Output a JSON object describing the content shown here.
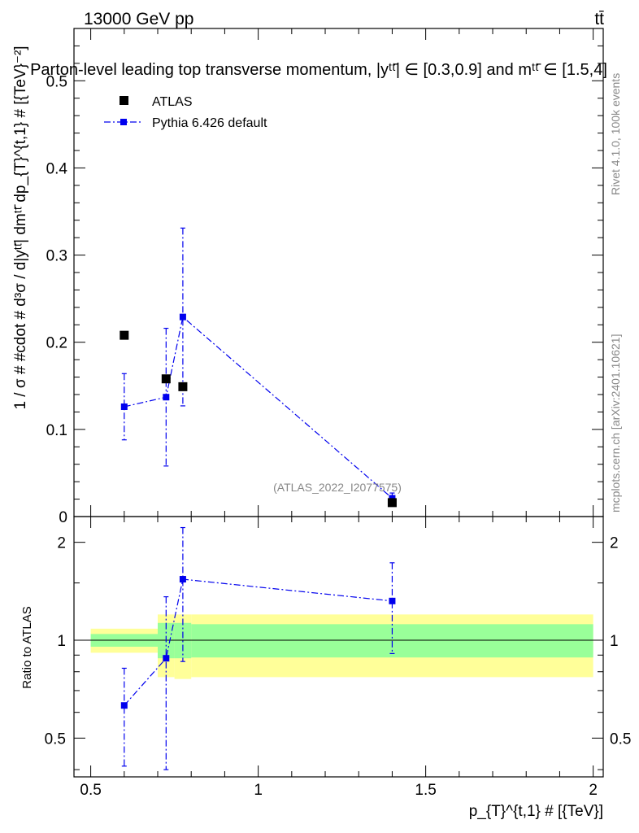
{
  "header": {
    "energy_label": "13000 GeV pp",
    "process_label": "tt̄",
    "title": "Parton-level leading top transverse momentum, |yᵗᵗ̄| ∈ [0.3,0.9] and mᵗᵗ̄ ∈ [1.5,4]",
    "rivet_label": "Rivet 4.1.0,  100k events",
    "source_label": "mcplots.cern.ch [arXiv:2401.10621]",
    "analysis_label": "(ATLAS_2022_I2077575)"
  },
  "legend": {
    "atlas": "ATLAS",
    "pythia": "Pythia 6.426 default"
  },
  "colors": {
    "atlas": "#000000",
    "pythia": "#0000ee",
    "band_stat": "#99ff99",
    "band_total": "#ffff99"
  },
  "chart_data": [
    {
      "type": "scatter",
      "panel": "main",
      "title": "Parton-level leading top transverse momentum, |yᵗᵗ̄| ∈ [0.3,0.9] and mᵗᵗ̄ ∈ [1.5,4]",
      "xlabel": "p_{T}^{t,1} # [{TeV}]",
      "ylabel": "1 / σ # #cdot # d³σ / d|yᵗᵗ̄| dmᵗᵗ̄ dp_{T}^{t,1} # [{TeV}⁻²]",
      "xlim": [
        0.45,
        2.03
      ],
      "ylim": [
        0,
        0.56
      ],
      "yticks": [
        0,
        0.1,
        0.2,
        0.3,
        0.4,
        0.5
      ],
      "ytick_labels": [
        "0",
        "0.1",
        "0.2",
        "0.3",
        "0.4",
        "0.5"
      ],
      "series": [
        {
          "name": "ATLAS",
          "marker": "square",
          "x": [
            0.6,
            0.725,
            0.775,
            1.4
          ],
          "y": [
            0.208,
            0.158,
            0.149,
            0.016
          ]
        },
        {
          "name": "Pythia 6.426 default",
          "marker": "square-line",
          "x": [
            0.6,
            0.725,
            0.775,
            1.4
          ],
          "y": [
            0.126,
            0.137,
            0.229,
            0.021
          ],
          "yerr_low": [
            0.038,
            0.079,
            0.102,
            0.006
          ],
          "yerr_high": [
            0.038,
            0.079,
            0.102,
            0.006
          ]
        }
      ]
    },
    {
      "type": "scatter",
      "panel": "ratio",
      "xlabel": "p_{T}^{t,1} # [{TeV}]",
      "ylabel": "Ratio to ATLAS",
      "xlim": [
        0.45,
        2.03
      ],
      "ylim": [
        0.38,
        2.4
      ],
      "yscale": "log",
      "yticks": [
        0.5,
        1,
        2
      ],
      "ytick_labels": [
        "0.5",
        "1",
        "2"
      ],
      "xticks": [
        0.5,
        1,
        1.5,
        2
      ],
      "xtick_labels": [
        "0.5",
        "1",
        "1.5",
        "2"
      ],
      "reference_line": 1,
      "bands": [
        {
          "x0": 0.5,
          "x1": 0.7,
          "stat": [
            0.955,
            1.045
          ],
          "total": [
            0.915,
            1.085
          ]
        },
        {
          "x0": 0.7,
          "x1": 0.75,
          "stat": [
            0.88,
            1.13
          ],
          "total": [
            0.77,
            1.2
          ]
        },
        {
          "x0": 0.75,
          "x1": 0.8,
          "stat": [
            0.88,
            1.13
          ],
          "total": [
            0.76,
            1.2
          ]
        },
        {
          "x0": 0.8,
          "x1": 2.0,
          "stat": [
            0.885,
            1.12
          ],
          "total": [
            0.77,
            1.2
          ]
        }
      ],
      "series": [
        {
          "name": "Pythia 6.426 default",
          "x": [
            0.6,
            0.725,
            0.775,
            1.4
          ],
          "y": [
            0.63,
            0.88,
            1.54,
            1.32
          ],
          "yerr_low": [
            0.22,
            0.48,
            0.68,
            0.41
          ],
          "yerr_high": [
            0.19,
            0.48,
            0.68,
            0.41
          ]
        }
      ]
    }
  ]
}
